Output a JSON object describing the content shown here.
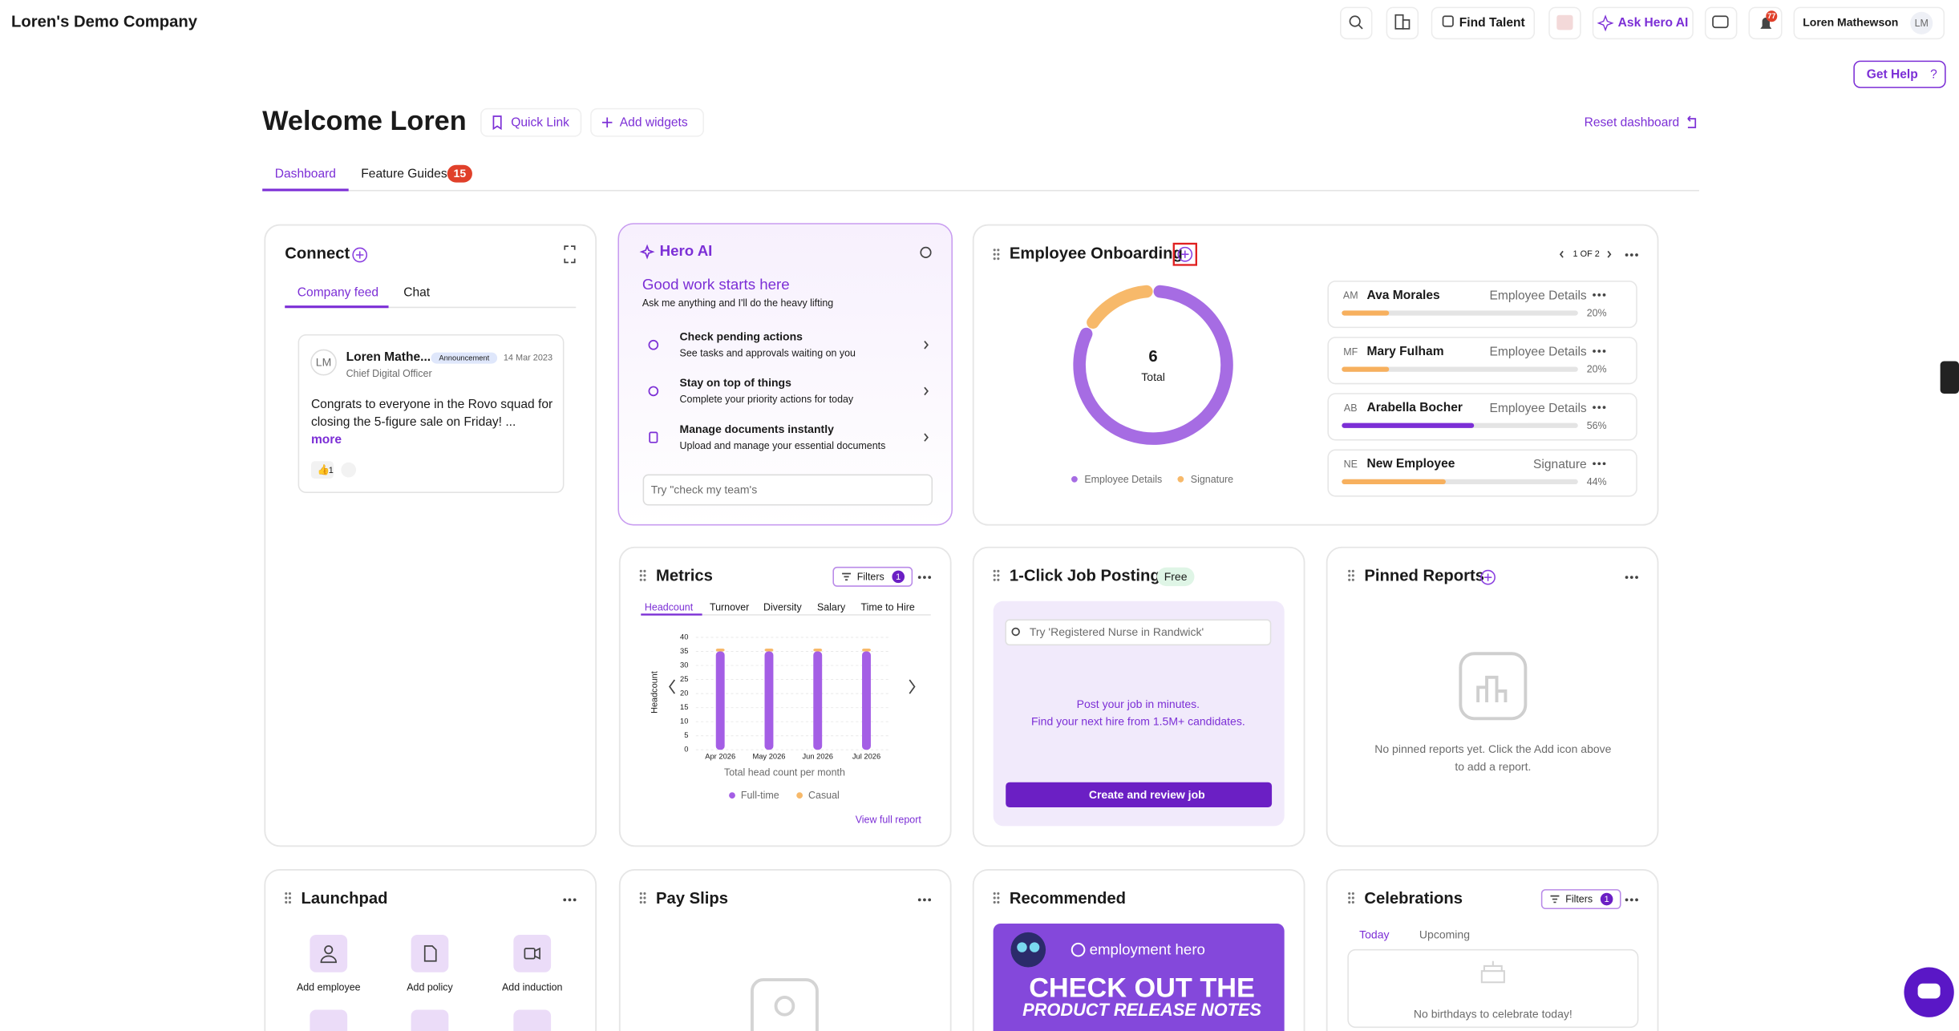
{
  "header": {
    "company": "Loren's Demo Company",
    "find_talent": "Find Talent",
    "ask_hero_ai": "Ask Hero AI",
    "notification_count": 77,
    "user_name": "Loren Mathewson",
    "user_initials": "LM",
    "get_help": "Get Help"
  },
  "welcome": {
    "title": "Welcome Loren",
    "quick_link": "Quick Link",
    "add_widgets": "Add widgets",
    "reset": "Reset dashboard"
  },
  "tabs": [
    {
      "label": "Dashboard"
    },
    {
      "label": "Feature Guides",
      "badge": 15
    }
  ],
  "connect": {
    "title": "Connect",
    "tabs": [
      "Company feed",
      "Chat"
    ],
    "post": {
      "initials": "LM",
      "author": "Loren Mathe...",
      "badge": "Announcement",
      "date": "14 Mar 2023",
      "role": "Chief Digital Officer",
      "body": [
        "Congrats to everyone in the Rovo squad for",
        "closing the 5-figure sale on Friday! ..."
      ],
      "more": "more",
      "reaction_count": 1
    }
  },
  "hero_ai": {
    "title": "Hero AI",
    "heading": "Good work starts here",
    "subheading": "Ask me anything and I'll do the heavy lifting",
    "actions": [
      {
        "title": "Check pending actions",
        "description": "See tasks and approvals waiting on you"
      },
      {
        "title": "Stay on top of things",
        "description": "Complete your priority actions for today"
      },
      {
        "title": "Manage documents instantly",
        "description": "Upload and manage your essential documents"
      }
    ],
    "placeholder": "Try \"check my team's"
  },
  "onboarding": {
    "title": "Employee Onboarding",
    "pager": "1 OF 2",
    "chart": {
      "type": "donut",
      "total": 6,
      "total_label": "Total",
      "series": [
        {
          "name": "Employee Details",
          "color": "#a66ce3",
          "value": 5
        },
        {
          "name": "Signature",
          "color": "#f7b96a",
          "value": 1
        }
      ]
    },
    "employees": [
      {
        "initials": "AM",
        "name": "Ava Morales",
        "stage": "Employee Details",
        "progress": 20,
        "progress_label": "20%",
        "color": "#f7b05e"
      },
      {
        "initials": "MF",
        "name": "Mary Fulham",
        "stage": "Employee Details",
        "progress": 20,
        "progress_label": "20%",
        "color": "#f7b05e"
      },
      {
        "initials": "AB",
        "name": "Arabella Bocher",
        "stage": "Employee Details",
        "progress": 56,
        "progress_label": "56%",
        "color": "#7c2fd6"
      },
      {
        "initials": "NE",
        "name": "New Employee",
        "stage": "Signature",
        "progress": 44,
        "progress_label": "44%",
        "color": "#f7b05e"
      }
    ]
  },
  "metrics": {
    "title": "Metrics",
    "filters": "Filters",
    "filter_count": 1,
    "tabs": [
      "Headcount",
      "Turnover",
      "Diversity",
      "Salary",
      "Time to Hire"
    ],
    "link": "View full report",
    "chart_data": {
      "type": "bar",
      "stacked": true,
      "y_label": "Headcount",
      "x_label": "Total head count per month",
      "categories": [
        "Apr 2026",
        "May 2026",
        "Jun 2026",
        "Jul 2026"
      ],
      "series": [
        {
          "name": "Full-time",
          "color": "#a45ee5",
          "values": [
            35,
            35,
            35,
            35
          ]
        },
        {
          "name": "Casual",
          "color": "#f7b96a",
          "values": [
            1,
            1,
            1,
            1
          ]
        }
      ],
      "ylim": [
        0,
        40
      ],
      "yticks": [
        0,
        5,
        10,
        15,
        20,
        25,
        30,
        35,
        40
      ],
      "grid": true
    }
  },
  "job_posting": {
    "title": "1-Click Job Posting",
    "badge": "Free",
    "placeholder": "Try 'Registered Nurse in Randwick'",
    "lines": [
      "Post your job in minutes.",
      "Find your next hire from 1.5M+ candidates."
    ],
    "button": "Create and review job"
  },
  "pinned_reports": {
    "title": "Pinned Reports",
    "empty": [
      "No pinned reports yet. Click the Add icon above",
      "to add a report."
    ]
  },
  "launchpad": {
    "title": "Launchpad",
    "items": [
      "Add employee",
      "Add policy",
      "Add induction"
    ]
  },
  "pay_slips": {
    "title": "Pay Slips"
  },
  "recommended": {
    "title": "Recommended",
    "brand": "employment hero",
    "banner": [
      "CHECK OUT THE",
      "PRODUCT RELEASE NOTES"
    ]
  },
  "celebrations": {
    "title": "Celebrations",
    "filters": "Filters",
    "filter_count": 1,
    "tabs": [
      "Today",
      "Upcoming"
    ],
    "empty": "No birthdays to celebrate today!"
  }
}
